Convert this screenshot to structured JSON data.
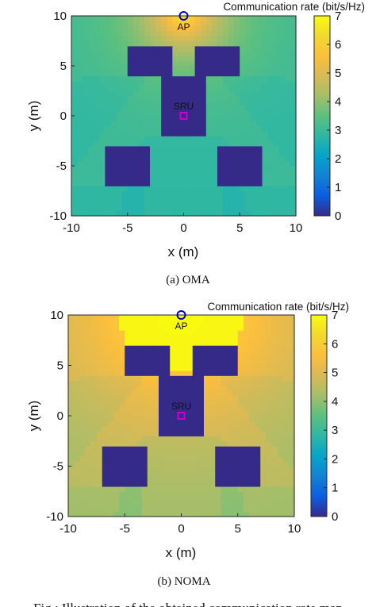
{
  "chart_data": [
    {
      "type": "heatmap",
      "caption": "(a)  OMA",
      "colorbar_title": "Communication rate  (bit/s/Hz)",
      "xlabel": "x (m)",
      "ylabel": "y (m)",
      "xlim": [
        -10,
        10
      ],
      "ylim": [
        -10,
        10
      ],
      "xticks": [
        -10,
        -5,
        0,
        5,
        10
      ],
      "yticks": [
        -10,
        -5,
        0,
        5,
        10
      ],
      "clim": [
        0,
        7
      ],
      "cticks": [
        0,
        1,
        2,
        3,
        4,
        5,
        6,
        7
      ],
      "colormap": "parula",
      "grid": false,
      "points": [
        {
          "label": "AP",
          "x": 0,
          "y": 10,
          "marker": "circle",
          "color": "#0000cc"
        },
        {
          "label": "SRU",
          "x": 0,
          "y": 0,
          "marker": "square",
          "color": "#cc00cc"
        }
      ],
      "obstacles": [
        {
          "x": [
            -5,
            -1
          ],
          "y": [
            4,
            7
          ],
          "value": 0
        },
        {
          "x": [
            1,
            5
          ],
          "y": [
            4,
            7
          ],
          "value": 0
        },
        {
          "x": [
            -2,
            2
          ],
          "y": [
            -2,
            4
          ],
          "value": 0
        },
        {
          "x": [
            -7,
            -3
          ],
          "y": [
            -7,
            -3
          ],
          "value": 0
        },
        {
          "x": [
            3,
            7
          ],
          "y": [
            -7,
            -3
          ],
          "value": 0
        }
      ],
      "rate_samples": [
        {
          "x": 0,
          "y": 9,
          "value": 6.0
        },
        {
          "x": 0,
          "y": 6,
          "value": 4.2
        },
        {
          "x": -8,
          "y": 8,
          "value": 4.5
        },
        {
          "x": -8,
          "y": 0,
          "value": 3.6
        },
        {
          "x": 0,
          "y": -4,
          "value": 3.2
        },
        {
          "x": 0,
          "y": -8,
          "value": 3.0
        },
        {
          "x": -9,
          "y": -9,
          "value": 3.3
        }
      ]
    },
    {
      "type": "heatmap",
      "caption": "(b)  NOMA",
      "colorbar_title": "Communication rate  (bit/s/Hz)",
      "xlabel": "x (m)",
      "ylabel": "y (m)",
      "xlim": [
        -10,
        10
      ],
      "ylim": [
        -10,
        10
      ],
      "xticks": [
        -10,
        -5,
        0,
        5,
        10
      ],
      "yticks": [
        -10,
        -5,
        0,
        5,
        10
      ],
      "clim": [
        0,
        7
      ],
      "cticks": [
        0,
        1,
        2,
        3,
        4,
        5,
        6,
        7
      ],
      "colormap": "parula",
      "grid": false,
      "points": [
        {
          "label": "AP",
          "x": 0,
          "y": 10,
          "marker": "circle",
          "color": "#0000cc"
        },
        {
          "label": "SRU",
          "x": 0,
          "y": 0,
          "marker": "square",
          "color": "#cc00cc"
        }
      ],
      "obstacles": [
        {
          "x": [
            -5,
            -1
          ],
          "y": [
            4,
            7
          ],
          "value": 0
        },
        {
          "x": [
            1,
            5
          ],
          "y": [
            4,
            7
          ],
          "value": 0
        },
        {
          "x": [
            -2,
            2
          ],
          "y": [
            -2,
            4
          ],
          "value": 0
        },
        {
          "x": [
            -7,
            -3
          ],
          "y": [
            -7,
            -3
          ],
          "value": 0
        },
        {
          "x": [
            3,
            7
          ],
          "y": [
            -7,
            -3
          ],
          "value": 0
        }
      ],
      "rate_samples": [
        {
          "x": 0,
          "y": 9,
          "value": 7.0
        },
        {
          "x": 0,
          "y": 5,
          "value": 6.8
        },
        {
          "x": -8,
          "y": 8,
          "value": 6.2
        },
        {
          "x": -8,
          "y": 0,
          "value": 5.8
        },
        {
          "x": 0,
          "y": -4,
          "value": 4.8
        },
        {
          "x": 0,
          "y": -8,
          "value": 4.2
        },
        {
          "x": -9,
          "y": -9,
          "value": 4.5
        }
      ]
    }
  ],
  "figure_caption": "Fig.: Illustration of the obtained communication rate map"
}
